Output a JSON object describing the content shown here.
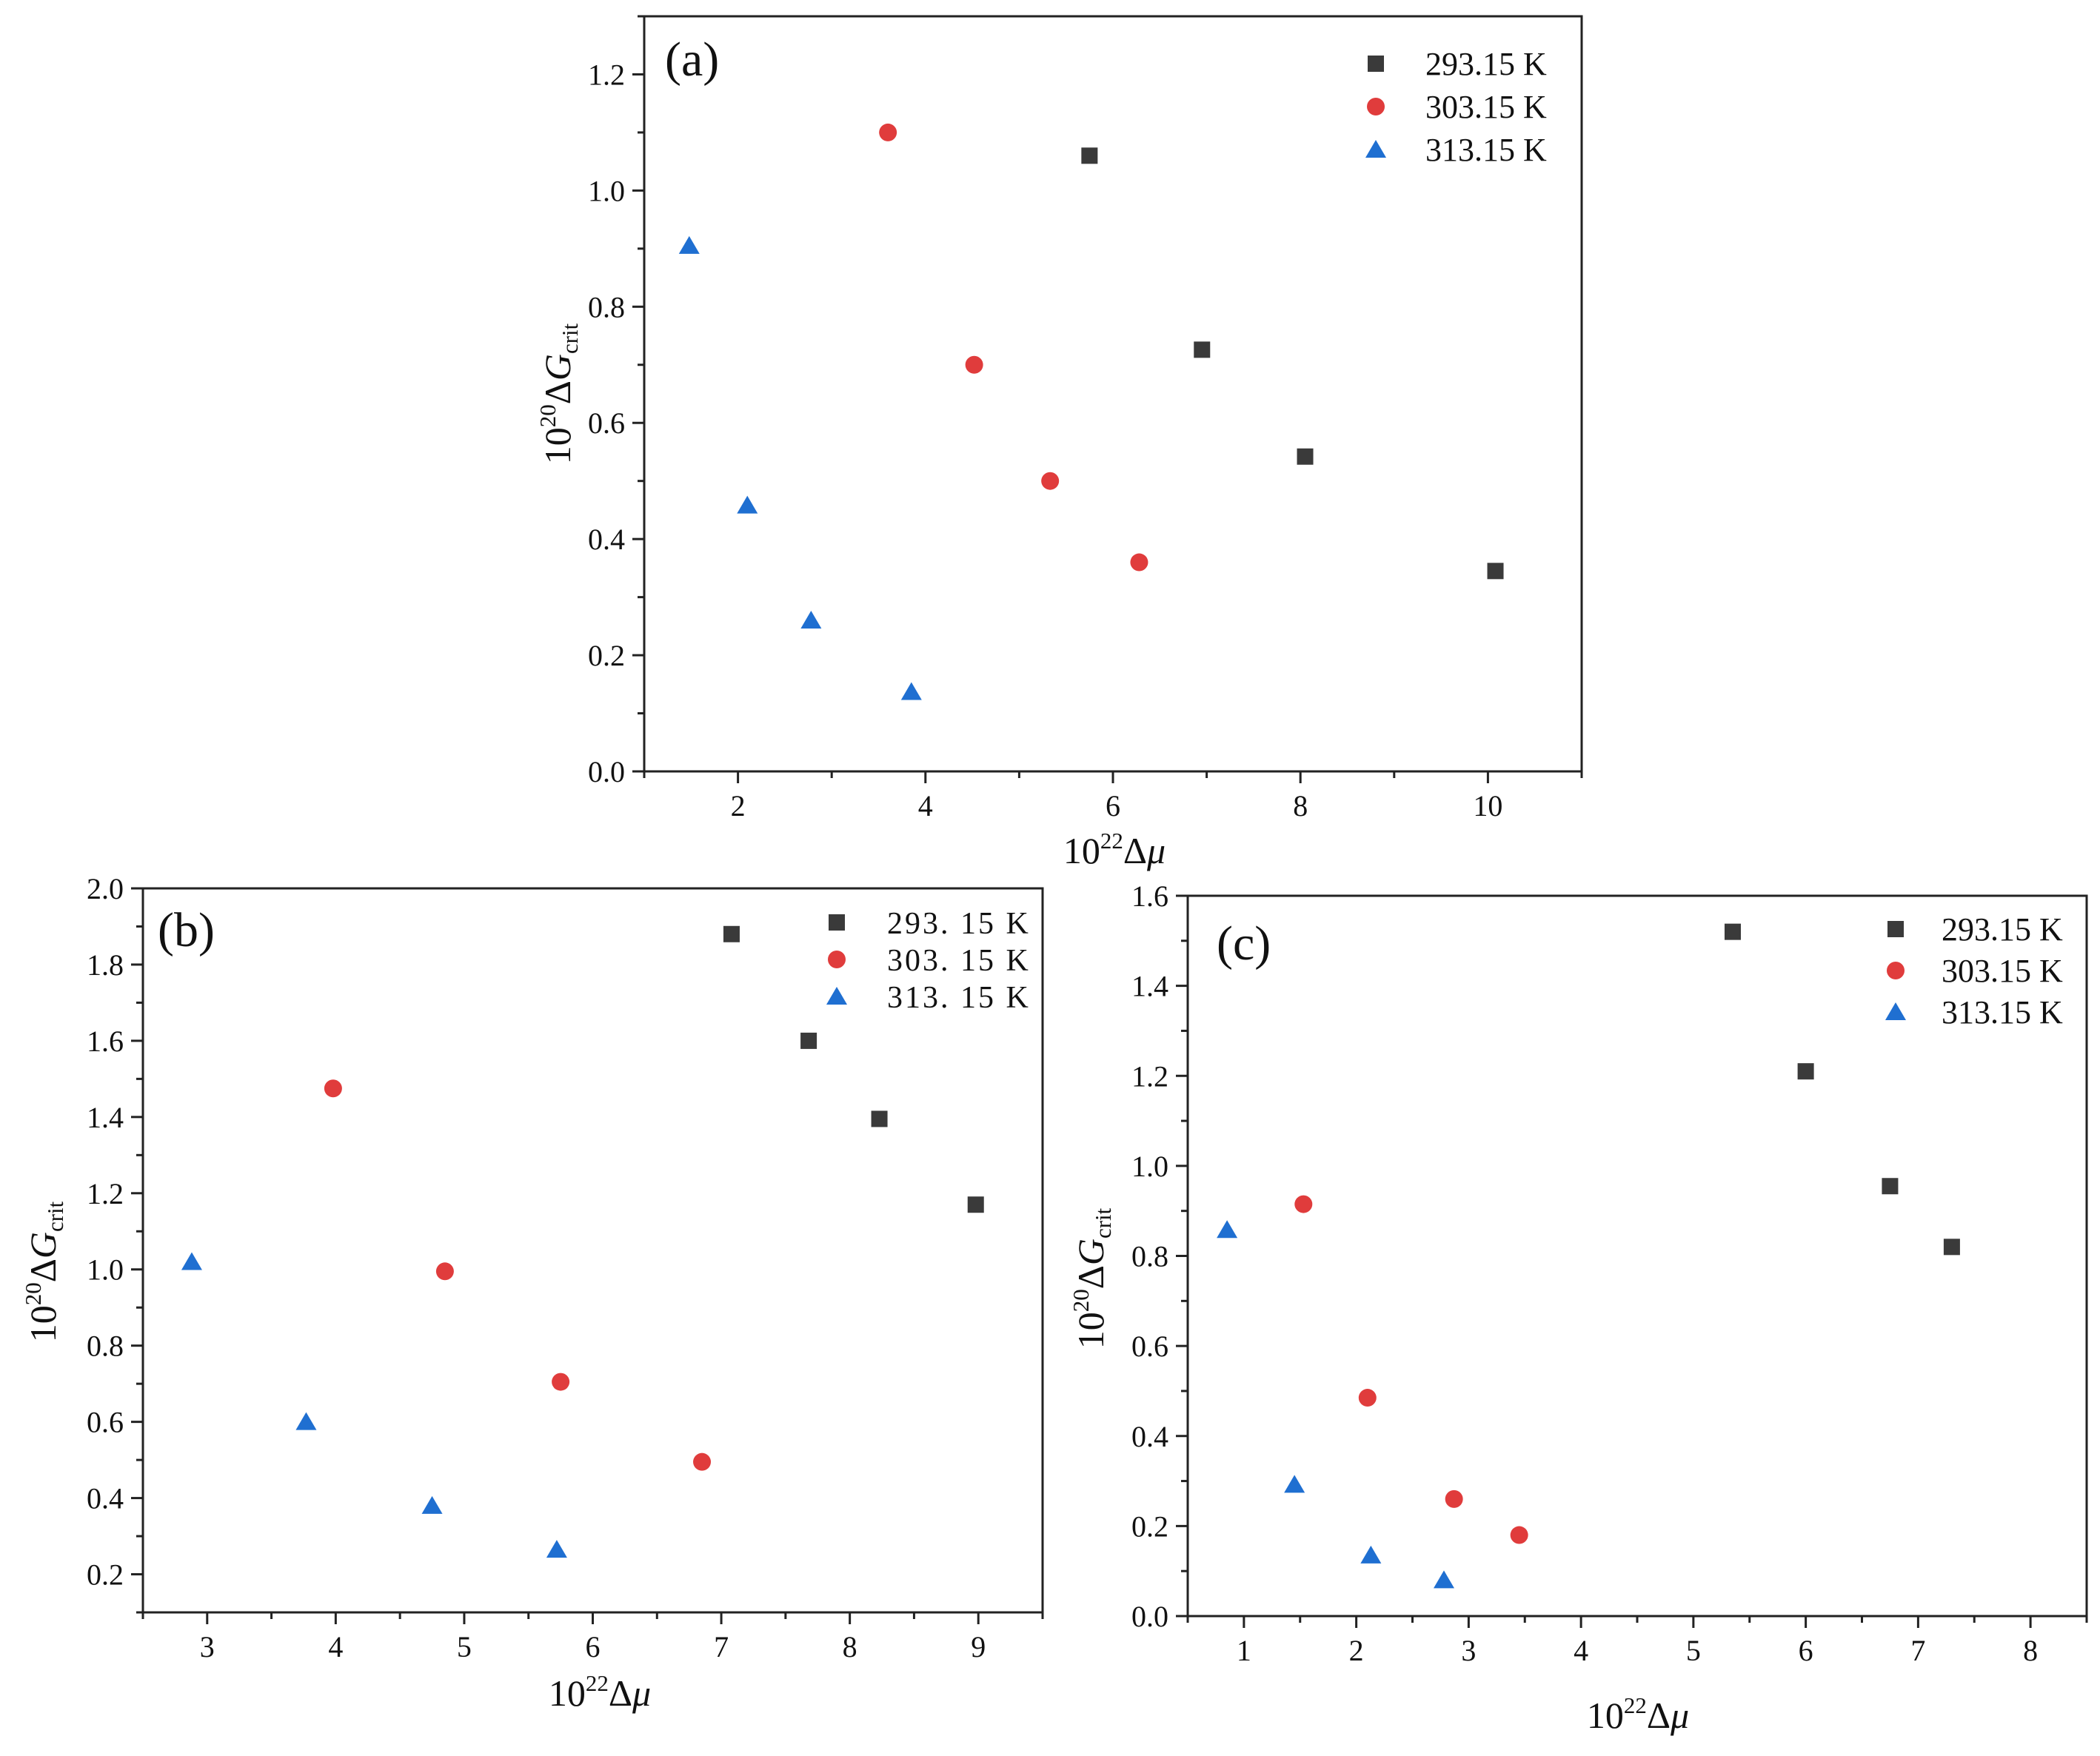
{
  "chart_data": [
    {
      "panel": "(a)",
      "type": "scatter",
      "xlabel": {
        "base": "10",
        "exp": "22",
        "sym": "Δ",
        "var": "μ",
        "sub": ""
      },
      "ylabel": {
        "base": "10",
        "exp": "20",
        "sym": "Δ",
        "var": "G",
        "sub": "crit"
      },
      "xlim": [
        1,
        11
      ],
      "ylim": [
        0,
        1.3
      ],
      "x_ticks": [
        2,
        4,
        6,
        8,
        10
      ],
      "x_tick_labels": [
        "2",
        "4",
        "6",
        "8",
        "10"
      ],
      "y_ticks": [
        0,
        0.2,
        0.4,
        0.6,
        0.8,
        1.0,
        1.2
      ],
      "y_tick_labels": [
        "0.0",
        "0.2",
        "0.4",
        "0.6",
        "0.8",
        "1.0",
        "1.2"
      ],
      "legend_position": "top-right",
      "series": [
        {
          "name": "293.15 K",
          "marker": "square",
          "color": "#3a3a3a",
          "x": [
            5.75,
            6.95,
            8.05,
            10.08
          ],
          "y": [
            1.06,
            0.726,
            0.542,
            0.345
          ]
        },
        {
          "name": "303.15 K",
          "marker": "circle",
          "color": "#e03c3c",
          "x": [
            3.6,
            4.52,
            5.33,
            6.28
          ],
          "y": [
            1.1,
            0.7,
            0.5,
            0.36
          ]
        },
        {
          "name": "313.15 K",
          "marker": "triangle",
          "color": "#1f6fd1",
          "x": [
            1.48,
            2.1,
            2.78,
            3.85
          ],
          "y": [
            0.905,
            0.458,
            0.26,
            0.137
          ]
        }
      ]
    },
    {
      "panel": "(b)",
      "type": "scatter",
      "xlabel": {
        "base": "10",
        "exp": "22",
        "sym": "Δ",
        "var": "μ",
        "sub": ""
      },
      "ylabel": {
        "base": "10",
        "exp": "20",
        "sym": "Δ",
        "var": "G",
        "sub": "crit"
      },
      "xlim": [
        2.5,
        9.5
      ],
      "ylim": [
        0.1,
        2.0
      ],
      "x_ticks": [
        3,
        4,
        5,
        6,
        7,
        8,
        9
      ],
      "x_tick_labels": [
        "3",
        "4",
        "5",
        "6",
        "7",
        "8",
        "9"
      ],
      "y_ticks": [
        0.2,
        0.4,
        0.6,
        0.8,
        1.0,
        1.2,
        1.4,
        1.6,
        1.8,
        2.0
      ],
      "y_tick_labels": [
        "0.2",
        "0.4",
        "0.6",
        "0.8",
        "1.0",
        "1.2",
        "1.4",
        "1.6",
        "1.8",
        "2.0"
      ],
      "legend_position": "top-right",
      "series": [
        {
          "name": "293. 15 K",
          "marker": "square",
          "color": "#3a3a3a",
          "x": [
            7.08,
            7.68,
            8.23,
            8.98
          ],
          "y": [
            1.88,
            1.6,
            1.395,
            1.17
          ]
        },
        {
          "name": "303. 15 K",
          "marker": "circle",
          "color": "#e03c3c",
          "x": [
            3.98,
            4.85,
            5.75,
            6.85
          ],
          "y": [
            1.475,
            0.995,
            0.705,
            0.495
          ]
        },
        {
          "name": "313. 15 K",
          "marker": "triangle",
          "color": "#1f6fd1",
          "x": [
            2.88,
            3.77,
            4.75,
            5.72
          ],
          "y": [
            1.02,
            0.6,
            0.38,
            0.265
          ]
        }
      ]
    },
    {
      "panel": "(c)",
      "type": "scatter",
      "xlabel": {
        "base": "10",
        "exp": "22",
        "sym": "Δ",
        "var": "μ",
        "sub": ""
      },
      "ylabel": {
        "base": "10",
        "exp": "20",
        "sym": "Δ",
        "var": "G",
        "sub": "crit"
      },
      "xlim": [
        0.5,
        8.5
      ],
      "ylim": [
        0,
        1.6
      ],
      "x_ticks": [
        1,
        2,
        3,
        4,
        5,
        6,
        7,
        8
      ],
      "x_tick_labels": [
        "1",
        "2",
        "3",
        "4",
        "5",
        "6",
        "7",
        "8"
      ],
      "y_ticks": [
        0,
        0.2,
        0.4,
        0.6,
        0.8,
        1.0,
        1.2,
        1.4,
        1.6
      ],
      "y_tick_labels": [
        "0.0",
        "0.2",
        "0.4",
        "0.6",
        "0.8",
        "1.0",
        "1.2",
        "1.4",
        "1.6"
      ],
      "legend_position": "top-right",
      "series": [
        {
          "name": "293.15 K",
          "marker": "square",
          "color": "#3a3a3a",
          "x": [
            5.35,
            6.0,
            6.75,
            7.3
          ],
          "y": [
            1.52,
            1.21,
            0.955,
            0.82
          ]
        },
        {
          "name": "303.15 K",
          "marker": "circle",
          "color": "#e03c3c",
          "x": [
            1.53,
            2.1,
            2.87,
            3.45
          ],
          "y": [
            0.915,
            0.485,
            0.26,
            0.18
          ]
        },
        {
          "name": "313.15 K",
          "marker": "triangle",
          "color": "#1f6fd1",
          "x": [
            0.85,
            1.45,
            2.13,
            2.78
          ],
          "y": [
            0.858,
            0.292,
            0.135,
            0.08
          ]
        }
      ]
    }
  ]
}
